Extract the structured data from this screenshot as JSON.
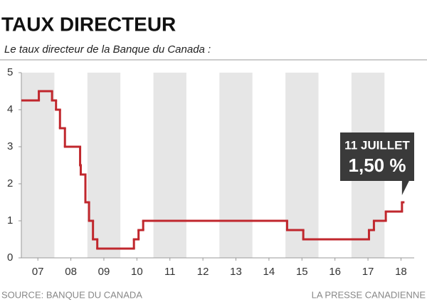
{
  "chart_data": {
    "type": "step-line",
    "title": "TAUX DIRECTEUR",
    "subtitle": "Le taux directeur de la Banque du Canada :",
    "source": "SOURCE: BANQUE DU CANADA",
    "credit": "LA PRESSE CANADIENNE",
    "annotation": [
      "11 JUILLET",
      "1,50 %"
    ],
    "color": "#c0272d",
    "x": [
      2007.0,
      2007.53,
      2007.93,
      2008.05,
      2008.17,
      2008.32,
      2008.78,
      2008.8,
      2008.94,
      2009.05,
      2009.17,
      2009.3,
      2010.41,
      2010.55,
      2010.69,
      2015.05,
      2015.54,
      2017.53,
      2017.68,
      2018.04,
      2018.53
    ],
    "values": [
      4.25,
      4.5,
      4.25,
      4.0,
      3.5,
      3.0,
      2.5,
      2.25,
      1.5,
      1.0,
      0.5,
      0.25,
      0.5,
      0.75,
      1.0,
      0.75,
      0.5,
      0.75,
      1.0,
      1.25,
      1.5
    ],
    "xlim": [
      2007,
      2018.9
    ],
    "xticks": [
      {
        "value": 2007.5,
        "label": "07"
      },
      {
        "value": 2008.5,
        "label": "08"
      },
      {
        "value": 2009.5,
        "label": "09"
      },
      {
        "value": 2010.5,
        "label": "10"
      },
      {
        "value": 2011.5,
        "label": "11"
      },
      {
        "value": 2012.5,
        "label": "12"
      },
      {
        "value": 2013.5,
        "label": "13"
      },
      {
        "value": 2014.5,
        "label": "14"
      },
      {
        "value": 2015.5,
        "label": "15"
      },
      {
        "value": 2016.5,
        "label": "16"
      },
      {
        "value": 2017.5,
        "label": "17"
      },
      {
        "value": 2018.5,
        "label": "18"
      }
    ],
    "ylim": [
      0,
      5
    ],
    "yticks": [
      0,
      1,
      2,
      3,
      4,
      5
    ],
    "grid": false
  }
}
